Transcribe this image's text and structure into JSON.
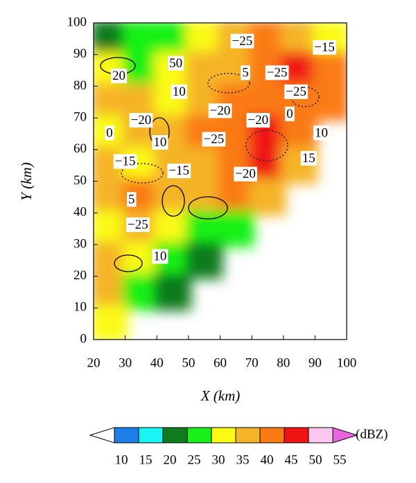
{
  "chart_data": {
    "type": "heatmap",
    "x_label": "X (km)",
    "y_label": "Y (km)",
    "xlim": [
      20,
      100
    ],
    "ylim": [
      0,
      100
    ],
    "xticks": [
      20,
      30,
      40,
      50,
      60,
      70,
      80,
      90,
      100
    ],
    "yticks": [
      0,
      10,
      20,
      30,
      40,
      50,
      60,
      70,
      80,
      90,
      100
    ],
    "x": [
      25,
      35,
      45,
      55,
      65,
      75,
      85,
      95
    ],
    "y": [
      95,
      85,
      75,
      65,
      55,
      45,
      35,
      25,
      15,
      5
    ],
    "values": [
      [
        20,
        25,
        25,
        30,
        35,
        40,
        35,
        30
      ],
      [
        30,
        25,
        30,
        35,
        35,
        40,
        45,
        40
      ],
      [
        35,
        35,
        30,
        35,
        40,
        40,
        40,
        40
      ],
      [
        30,
        35,
        35,
        40,
        40,
        45,
        40,
        null
      ],
      [
        35,
        30,
        35,
        35,
        40,
        45,
        35,
        null
      ],
      [
        35,
        40,
        35,
        35,
        40,
        35,
        null,
        null
      ],
      [
        30,
        35,
        30,
        25,
        25,
        null,
        null,
        null
      ],
      [
        35,
        30,
        25,
        20,
        null,
        null,
        null,
        null
      ],
      [
        35,
        25,
        20,
        null,
        null,
        null,
        null,
        null
      ],
      [
        30,
        null,
        null,
        null,
        null,
        null,
        null,
        null
      ]
    ],
    "annotations": [
      {
        "text": "−25",
        "x": 67,
        "y": 94
      },
      {
        "text": "−15",
        "x": 93,
        "y": 92
      },
      {
        "text": "50",
        "x": 46,
        "y": 87
      },
      {
        "text": "20",
        "x": 28,
        "y": 83
      },
      {
        "text": "5",
        "x": 68,
        "y": 84
      },
      {
        "text": "−25",
        "x": 78,
        "y": 84
      },
      {
        "text": "10",
        "x": 47,
        "y": 78
      },
      {
        "text": "−25",
        "x": 84,
        "y": 78
      },
      {
        "text": "−20",
        "x": 60,
        "y": 72
      },
      {
        "text": "0",
        "x": 82,
        "y": 71
      },
      {
        "text": "−20",
        "x": 35,
        "y": 69
      },
      {
        "text": "−20",
        "x": 72,
        "y": 69
      },
      {
        "text": "0",
        "x": 25,
        "y": 65
      },
      {
        "text": "10",
        "x": 92,
        "y": 65
      },
      {
        "text": "10",
        "x": 41,
        "y": 62
      },
      {
        "text": "−25",
        "x": 58,
        "y": 63
      },
      {
        "text": "−15",
        "x": 30,
        "y": 56
      },
      {
        "text": "15",
        "x": 88,
        "y": 57
      },
      {
        "text": "−15",
        "x": 47,
        "y": 53
      },
      {
        "text": "−20",
        "x": 68,
        "y": 52
      },
      {
        "text": "5",
        "x": 32,
        "y": 44
      },
      {
        "text": "−25",
        "x": 34,
        "y": 36
      },
      {
        "text": "10",
        "x": 41,
        "y": 26
      }
    ],
    "colorbar": {
      "levels": [
        10,
        15,
        20,
        25,
        30,
        35,
        40,
        45,
        50,
        55
      ],
      "colors": [
        "#ffffff",
        "#1e7fe8",
        "#19f5f5",
        "#0f7a1e",
        "#19f019",
        "#fafa14",
        "#f5b428",
        "#fa7a14",
        "#f01414",
        "#fcc8f0",
        "#e664dc"
      ],
      "unit": "(dBZ)"
    }
  }
}
